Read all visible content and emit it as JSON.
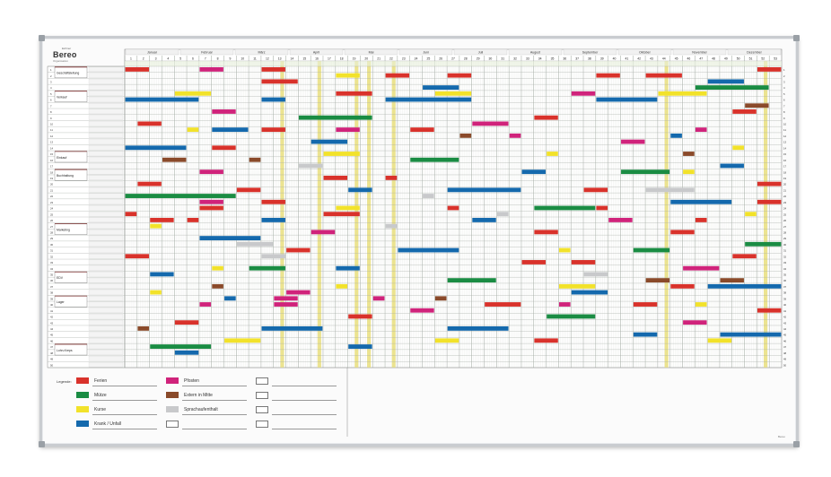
{
  "brand": {
    "name": "Bereo",
    "top": "Eichner",
    "sub": "Organisation"
  },
  "months": [
    "Januar",
    "Februar",
    "März",
    "April",
    "Mai",
    "Juni",
    "Juli",
    "August",
    "September",
    "Oktober",
    "November",
    "Dezember"
  ],
  "weeks_count": 53,
  "row_count": 50,
  "departments": [
    {
      "label": "Geschäftsleitung",
      "row": 1
    },
    {
      "label": "Verkauf",
      "row": 5
    },
    {
      "label": "Einkauf",
      "row": 15
    },
    {
      "label": "Buchhaltung",
      "row": 18
    },
    {
      "label": "Marketing",
      "row": 27
    },
    {
      "label": "EDV",
      "row": 35
    },
    {
      "label": "Lager",
      "row": 39
    },
    {
      "label": "Lohn-Kreps",
      "row": 47
    }
  ],
  "colors": {
    "red": "#d9322b",
    "pink": "#d0237b",
    "green": "#1a8c43",
    "brown": "#8a4a2a",
    "yellow": "#f2e22a",
    "gray": "#c8c9cb",
    "blue": "#1469ad",
    "holiday": "#efe58a",
    "grid": "#cfd3cc",
    "gridWeek": "#9aa39a"
  },
  "holiday_weeks": [
    13,
    16,
    19,
    20,
    22,
    44,
    52
  ],
  "chart_data": {
    "type": "table",
    "bars": [
      [
        1,
        1,
        2,
        "red"
      ],
      [
        1,
        7,
        8,
        "pink"
      ],
      [
        1,
        12,
        13,
        "red"
      ],
      [
        1,
        52,
        53,
        "red"
      ],
      [
        2,
        18,
        19,
        "yellow"
      ],
      [
        2,
        22,
        23,
        "red"
      ],
      [
        2,
        27,
        28,
        "red"
      ],
      [
        2,
        39,
        40,
        "red"
      ],
      [
        2,
        43,
        45,
        "red"
      ],
      [
        3,
        12,
        14,
        "red"
      ],
      [
        3,
        48,
        50,
        "blue"
      ],
      [
        4,
        25,
        27,
        "blue"
      ],
      [
        4,
        47,
        52,
        "green"
      ],
      [
        5,
        5,
        7,
        "yellow"
      ],
      [
        5,
        18,
        20,
        "red"
      ],
      [
        5,
        26,
        28,
        "yellow"
      ],
      [
        5,
        37,
        38,
        "pink"
      ],
      [
        5,
        44,
        47,
        "yellow"
      ],
      [
        6,
        1,
        6,
        "blue"
      ],
      [
        6,
        12,
        13,
        "blue"
      ],
      [
        6,
        22,
        28,
        "blue"
      ],
      [
        6,
        39,
        43,
        "blue"
      ],
      [
        7,
        51,
        52,
        "brown"
      ],
      [
        8,
        8,
        9,
        "pink"
      ],
      [
        8,
        50,
        51,
        "red"
      ],
      [
        9,
        15,
        20,
        "green"
      ],
      [
        9,
        34,
        35,
        "red"
      ],
      [
        10,
        2,
        3,
        "red"
      ],
      [
        10,
        29,
        31,
        "pink"
      ],
      [
        11,
        6,
        6,
        "yellow"
      ],
      [
        11,
        8,
        10,
        "blue"
      ],
      [
        11,
        12,
        13,
        "red"
      ],
      [
        11,
        18,
        19,
        "pink"
      ],
      [
        11,
        24,
        25,
        "red"
      ],
      [
        11,
        47,
        47,
        "pink"
      ],
      [
        12,
        28,
        28,
        "brown"
      ],
      [
        12,
        32,
        32,
        "pink"
      ],
      [
        12,
        45,
        45,
        "blue"
      ],
      [
        13,
        16,
        18,
        "blue"
      ],
      [
        13,
        41,
        42,
        "pink"
      ],
      [
        14,
        1,
        5,
        "blue"
      ],
      [
        14,
        8,
        9,
        "red"
      ],
      [
        14,
        50,
        50,
        "yellow"
      ],
      [
        15,
        17,
        19,
        "yellow"
      ],
      [
        15,
        35,
        35,
        "yellow"
      ],
      [
        15,
        46,
        46,
        "brown"
      ],
      [
        16,
        4,
        5,
        "brown"
      ],
      [
        16,
        11,
        11,
        "brown"
      ],
      [
        16,
        24,
        27,
        "green"
      ],
      [
        17,
        15,
        16,
        "gray"
      ],
      [
        17,
        49,
        50,
        "blue"
      ],
      [
        18,
        7,
        8,
        "pink"
      ],
      [
        18,
        33,
        34,
        "blue"
      ],
      [
        18,
        41,
        44,
        "green"
      ],
      [
        18,
        46,
        46,
        "yellow"
      ],
      [
        19,
        17,
        18,
        "red"
      ],
      [
        19,
        22,
        22,
        "red"
      ],
      [
        20,
        2,
        3,
        "red"
      ],
      [
        20,
        52,
        53,
        "red"
      ],
      [
        21,
        10,
        11,
        "red"
      ],
      [
        21,
        19,
        20,
        "blue"
      ],
      [
        21,
        27,
        32,
        "blue"
      ],
      [
        21,
        38,
        39,
        "red"
      ],
      [
        21,
        43,
        46,
        "gray"
      ],
      [
        22,
        1,
        9,
        "green"
      ],
      [
        22,
        25,
        25,
        "gray"
      ],
      [
        23,
        7,
        8,
        "pink"
      ],
      [
        23,
        12,
        13,
        "red"
      ],
      [
        23,
        45,
        49,
        "blue"
      ],
      [
        23,
        52,
        53,
        "red"
      ],
      [
        24,
        7,
        8,
        "red"
      ],
      [
        24,
        18,
        19,
        "yellow"
      ],
      [
        24,
        27,
        27,
        "red"
      ],
      [
        24,
        34,
        38,
        "green"
      ],
      [
        24,
        39,
        39,
        "red"
      ],
      [
        25,
        1,
        1,
        "red"
      ],
      [
        25,
        17,
        19,
        "red"
      ],
      [
        25,
        31,
        31,
        "gray"
      ],
      [
        25,
        51,
        51,
        "yellow"
      ],
      [
        26,
        3,
        4,
        "red"
      ],
      [
        26,
        6,
        6,
        "red"
      ],
      [
        26,
        12,
        13,
        "blue"
      ],
      [
        26,
        29,
        30,
        "blue"
      ],
      [
        26,
        40,
        41,
        "pink"
      ],
      [
        26,
        47,
        47,
        "red"
      ],
      [
        27,
        3,
        3,
        "yellow"
      ],
      [
        27,
        22,
        22,
        "gray"
      ],
      [
        28,
        16,
        17,
        "pink"
      ],
      [
        28,
        34,
        35,
        "red"
      ],
      [
        28,
        45,
        46,
        "red"
      ],
      [
        29,
        7,
        11,
        "blue"
      ],
      [
        30,
        10,
        12,
        "gray"
      ],
      [
        30,
        51,
        53,
        "green"
      ],
      [
        31,
        14,
        15,
        "red"
      ],
      [
        31,
        23,
        27,
        "blue"
      ],
      [
        31,
        36,
        36,
        "yellow"
      ],
      [
        31,
        42,
        44,
        "green"
      ],
      [
        32,
        1,
        2,
        "red"
      ],
      [
        32,
        12,
        13,
        "gray"
      ],
      [
        32,
        50,
        51,
        "red"
      ],
      [
        33,
        33,
        34,
        "red"
      ],
      [
        33,
        37,
        38,
        "red"
      ],
      [
        34,
        8,
        8,
        "yellow"
      ],
      [
        34,
        11,
        13,
        "green"
      ],
      [
        34,
        18,
        19,
        "blue"
      ],
      [
        34,
        46,
        48,
        "pink"
      ],
      [
        35,
        3,
        4,
        "blue"
      ],
      [
        35,
        38,
        39,
        "gray"
      ],
      [
        36,
        27,
        30,
        "green"
      ],
      [
        36,
        43,
        44,
        "brown"
      ],
      [
        36,
        49,
        50,
        "brown"
      ],
      [
        37,
        8,
        8,
        "brown"
      ],
      [
        37,
        18,
        18,
        "yellow"
      ],
      [
        37,
        36,
        38,
        "yellow"
      ],
      [
        37,
        45,
        46,
        "red"
      ],
      [
        37,
        48,
        53,
        "blue"
      ],
      [
        38,
        3,
        3,
        "yellow"
      ],
      [
        38,
        14,
        15,
        "pink"
      ],
      [
        38,
        37,
        39,
        "blue"
      ],
      [
        39,
        9,
        9,
        "blue"
      ],
      [
        39,
        13,
        14,
        "pink"
      ],
      [
        39,
        21,
        21,
        "pink"
      ],
      [
        39,
        26,
        26,
        "brown"
      ],
      [
        40,
        7,
        7,
        "pink"
      ],
      [
        40,
        13,
        14,
        "pink"
      ],
      [
        40,
        30,
        32,
        "red"
      ],
      [
        40,
        36,
        36,
        "pink"
      ],
      [
        40,
        42,
        43,
        "red"
      ],
      [
        40,
        47,
        47,
        "yellow"
      ],
      [
        41,
        24,
        25,
        "pink"
      ],
      [
        41,
        52,
        53,
        "red"
      ],
      [
        42,
        19,
        20,
        "red"
      ],
      [
        42,
        35,
        38,
        "green"
      ],
      [
        43,
        5,
        6,
        "red"
      ],
      [
        43,
        46,
        47,
        "pink"
      ],
      [
        44,
        2,
        2,
        "brown"
      ],
      [
        44,
        12,
        16,
        "blue"
      ],
      [
        44,
        27,
        31,
        "blue"
      ],
      [
        45,
        42,
        43,
        "blue"
      ],
      [
        45,
        49,
        53,
        "blue"
      ],
      [
        46,
        9,
        11,
        "yellow"
      ],
      [
        46,
        26,
        27,
        "yellow"
      ],
      [
        46,
        34,
        35,
        "red"
      ],
      [
        46,
        48,
        49,
        "yellow"
      ],
      [
        47,
        3,
        7,
        "green"
      ],
      [
        47,
        19,
        20,
        "blue"
      ],
      [
        48,
        5,
        6,
        "blue"
      ]
    ]
  },
  "legend": {
    "title": "Legende:",
    "items": [
      {
        "label": "Ferien",
        "color": "red"
      },
      {
        "label": "Pfosten",
        "color": "pink"
      },
      {
        "label": "",
        "color": "empty"
      },
      {
        "label": "Mütze",
        "color": "green"
      },
      {
        "label": "Extern in Mitte",
        "color": "brown"
      },
      {
        "label": "",
        "color": "empty"
      },
      {
        "label": "Kurse",
        "color": "yellow"
      },
      {
        "label": "Sprachaufenthalt",
        "color": "gray"
      },
      {
        "label": "",
        "color": "empty"
      },
      {
        "label": "Krank / Unfall",
        "color": "blue"
      },
      {
        "label": "",
        "color": "empty"
      },
      {
        "label": "",
        "color": "empty"
      }
    ]
  },
  "footer": "Bereo"
}
